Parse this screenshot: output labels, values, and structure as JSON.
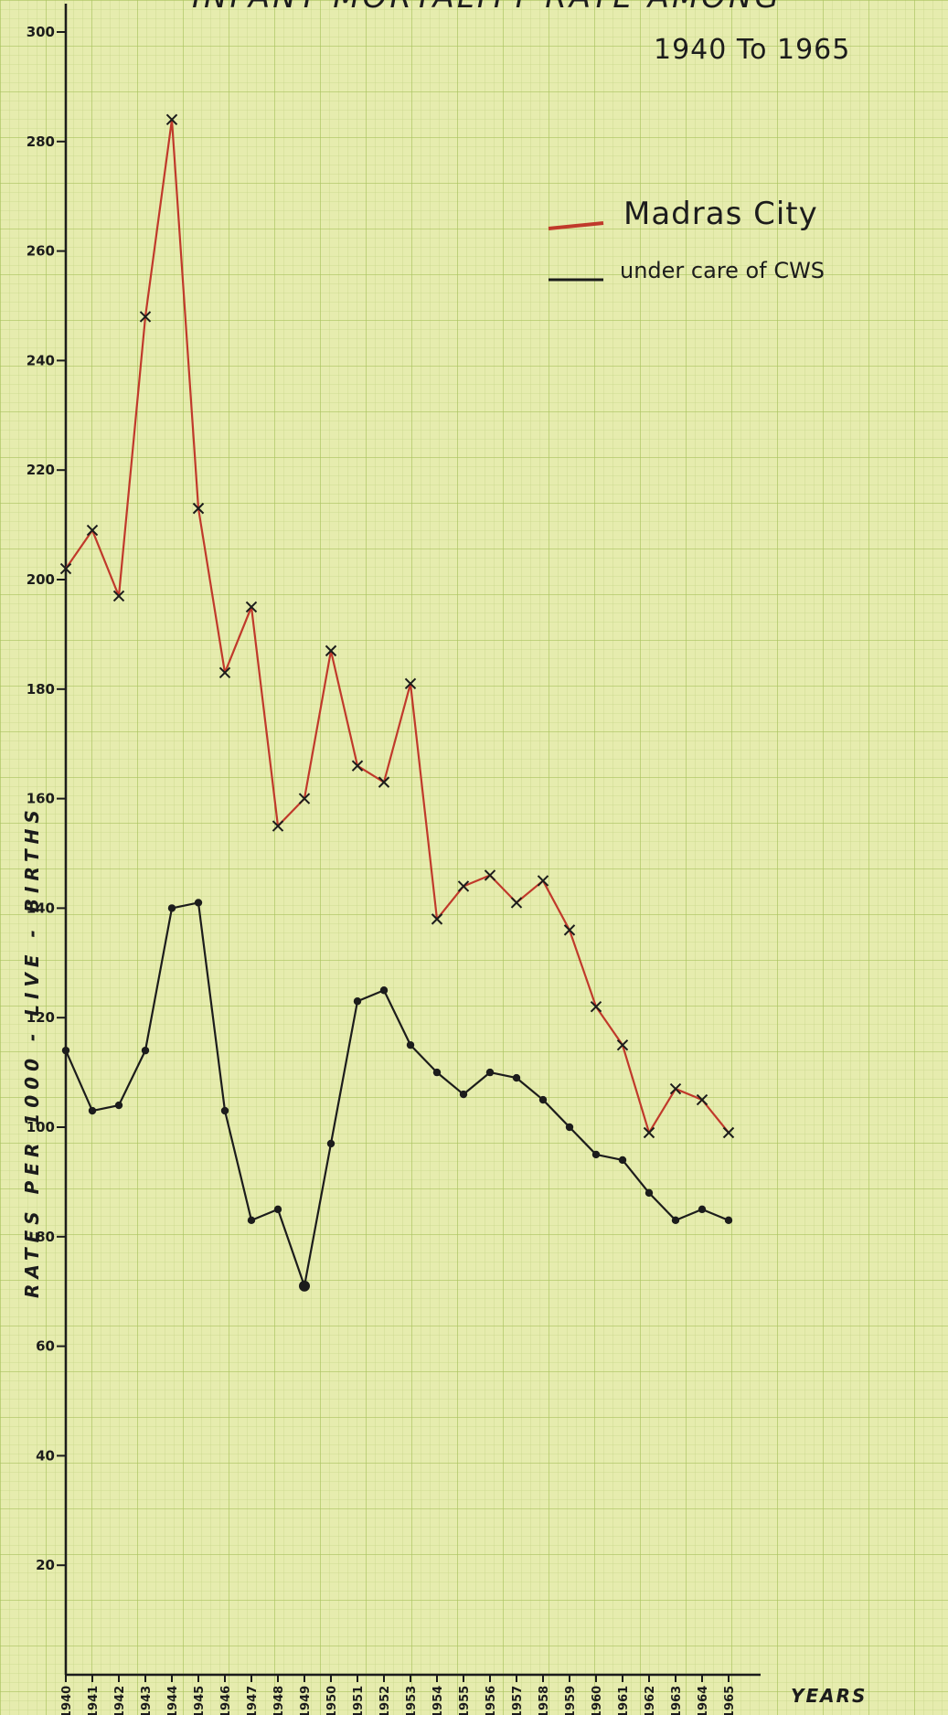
{
  "chart_data": {
    "type": "line",
    "title": "INFANT MORTALITY RATE AMONG",
    "subtitle": "1940 To 1965",
    "xlabel": "YEARS",
    "ylabel": "RATES PER 1000 - LIVE - BIRTHS",
    "ylim": [
      0,
      300
    ],
    "yticks": [
      "20",
      "40",
      "60",
      "80",
      "100",
      "120",
      "140",
      "160",
      "180",
      "200",
      "220",
      "240",
      "260",
      "280",
      "300"
    ],
    "x": [
      "1940",
      "1941",
      "1942",
      "1943",
      "1944",
      "1945",
      "1946",
      "1947",
      "1948",
      "1949",
      "1950",
      "1951",
      "1952",
      "1953",
      "1954",
      "1955",
      "1956",
      "1957",
      "1958",
      "1959",
      "1960",
      "1961",
      "1962",
      "1963",
      "1964",
      "1965"
    ],
    "series": [
      {
        "name": "Madras City",
        "color": "#c0392b",
        "marker": "x",
        "values": [
          202,
          209,
          197,
          248,
          284,
          213,
          183,
          195,
          155,
          160,
          187,
          166,
          163,
          181,
          138,
          144,
          146,
          141,
          145,
          136,
          122,
          115,
          99,
          107,
          105,
          99
        ]
      },
      {
        "name": "under care of CWS",
        "color": "#1c1c1c",
        "marker": "dot",
        "values": [
          114,
          103,
          104,
          114,
          140,
          141,
          103,
          83,
          85,
          71,
          97,
          123,
          125,
          115,
          110,
          106,
          110,
          109,
          105,
          100,
          95,
          94,
          88,
          83,
          85,
          83
        ]
      }
    ],
    "legend": "top-right",
    "grid": true
  }
}
